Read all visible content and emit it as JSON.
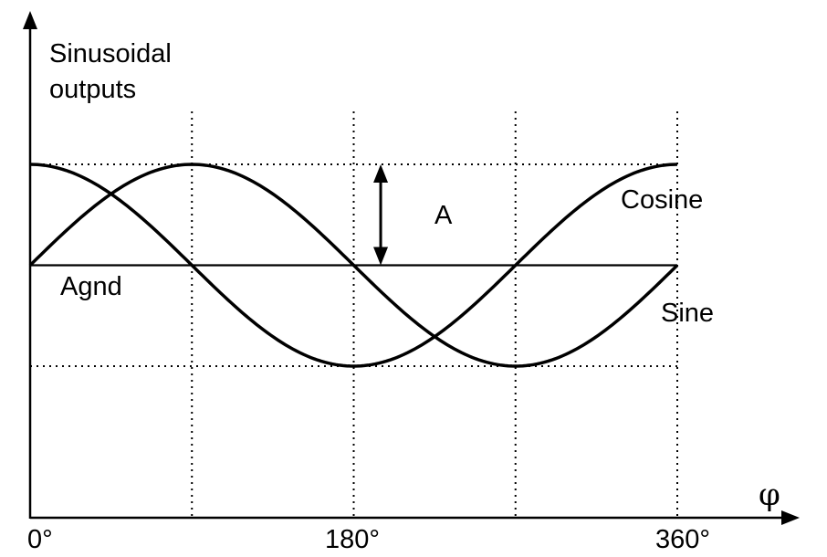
{
  "chart_data": {
    "type": "line",
    "ylabel_line1": "Sinusoidal",
    "ylabel_line2": "outputs",
    "xlabel": "φ",
    "xlim": [
      0,
      360
    ],
    "ylim": [
      -1,
      1
    ],
    "x_ticks": [
      {
        "value": 0,
        "label": "0°"
      },
      {
        "value": 90,
        "label": ""
      },
      {
        "value": 180,
        "label": "180°"
      },
      {
        "value": 270,
        "label": ""
      },
      {
        "value": 360,
        "label": "360°"
      }
    ],
    "vertical_gridlines": [
      90,
      180,
      270,
      360
    ],
    "horizontal_reference_levels": [
      1,
      -1
    ],
    "baseline": {
      "value": 0,
      "label": "Agnd"
    },
    "amplitude_marker": {
      "x": 195,
      "from": 0,
      "to": 1,
      "label": "A"
    },
    "series": [
      {
        "name": "Cosine",
        "function": "cos",
        "x": [
          0,
          45,
          90,
          135,
          180,
          225,
          270,
          315,
          360
        ],
        "values": [
          1,
          0.707,
          0,
          -0.707,
          -1,
          -0.707,
          0,
          0.707,
          1
        ]
      },
      {
        "name": "Sine",
        "function": "sin",
        "x": [
          0,
          45,
          90,
          135,
          180,
          225,
          270,
          315,
          360
        ],
        "values": [
          0,
          0.707,
          1,
          0.707,
          0,
          -0.707,
          -1,
          -0.707,
          0
        ]
      }
    ],
    "grid": "dotted",
    "line_color": "#000000"
  }
}
